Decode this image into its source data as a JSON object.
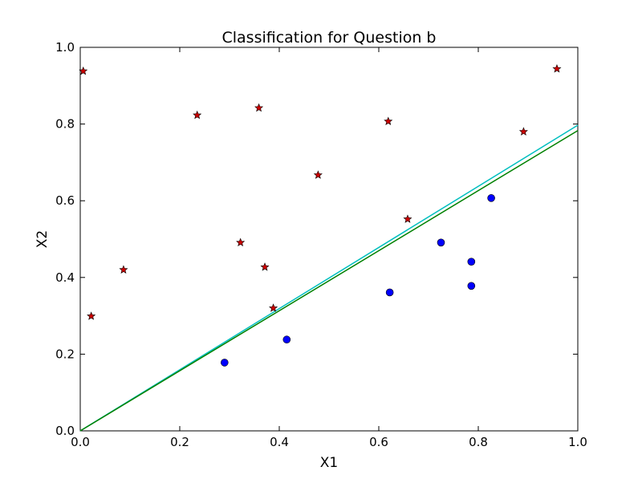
{
  "chart_data": {
    "type": "scatter",
    "title": "Classification for Question b",
    "xlabel": "X1",
    "ylabel": "X2",
    "xlim": [
      0.0,
      1.0
    ],
    "ylim": [
      0.0,
      1.0
    ],
    "xticks": [
      "0.0",
      "0.2",
      "0.4",
      "0.6",
      "0.8",
      "1.0"
    ],
    "yticks": [
      "0.0",
      "0.2",
      "0.4",
      "0.6",
      "0.8",
      "1.0"
    ],
    "grid": false,
    "legend": "none",
    "series": [
      {
        "marker": "star",
        "color": "#cc0000",
        "points": [
          [
            0.006,
            0.938
          ],
          [
            0.022,
            0.299
          ],
          [
            0.087,
            0.42
          ],
          [
            0.235,
            0.823
          ],
          [
            0.322,
            0.491
          ],
          [
            0.359,
            0.842
          ],
          [
            0.371,
            0.427
          ],
          [
            0.388,
            0.32
          ],
          [
            0.478,
            0.667
          ],
          [
            0.619,
            0.807
          ],
          [
            0.658,
            0.552
          ],
          [
            0.891,
            0.78
          ],
          [
            0.958,
            0.944
          ]
        ]
      },
      {
        "marker": "circle",
        "color": "#0000ff",
        "points": [
          [
            0.29,
            0.178
          ],
          [
            0.415,
            0.238
          ],
          [
            0.622,
            0.361
          ],
          [
            0.725,
            0.491
          ],
          [
            0.786,
            0.441
          ],
          [
            0.786,
            0.378
          ],
          [
            0.826,
            0.607
          ]
        ]
      }
    ],
    "lines": [
      {
        "color": "#00bfbf",
        "x": [
          0.0,
          1.0
        ],
        "y": [
          0.0,
          0.797
        ]
      },
      {
        "color": "#008000",
        "x": [
          0.0,
          1.0
        ],
        "y": [
          0.0,
          0.783
        ]
      }
    ]
  }
}
